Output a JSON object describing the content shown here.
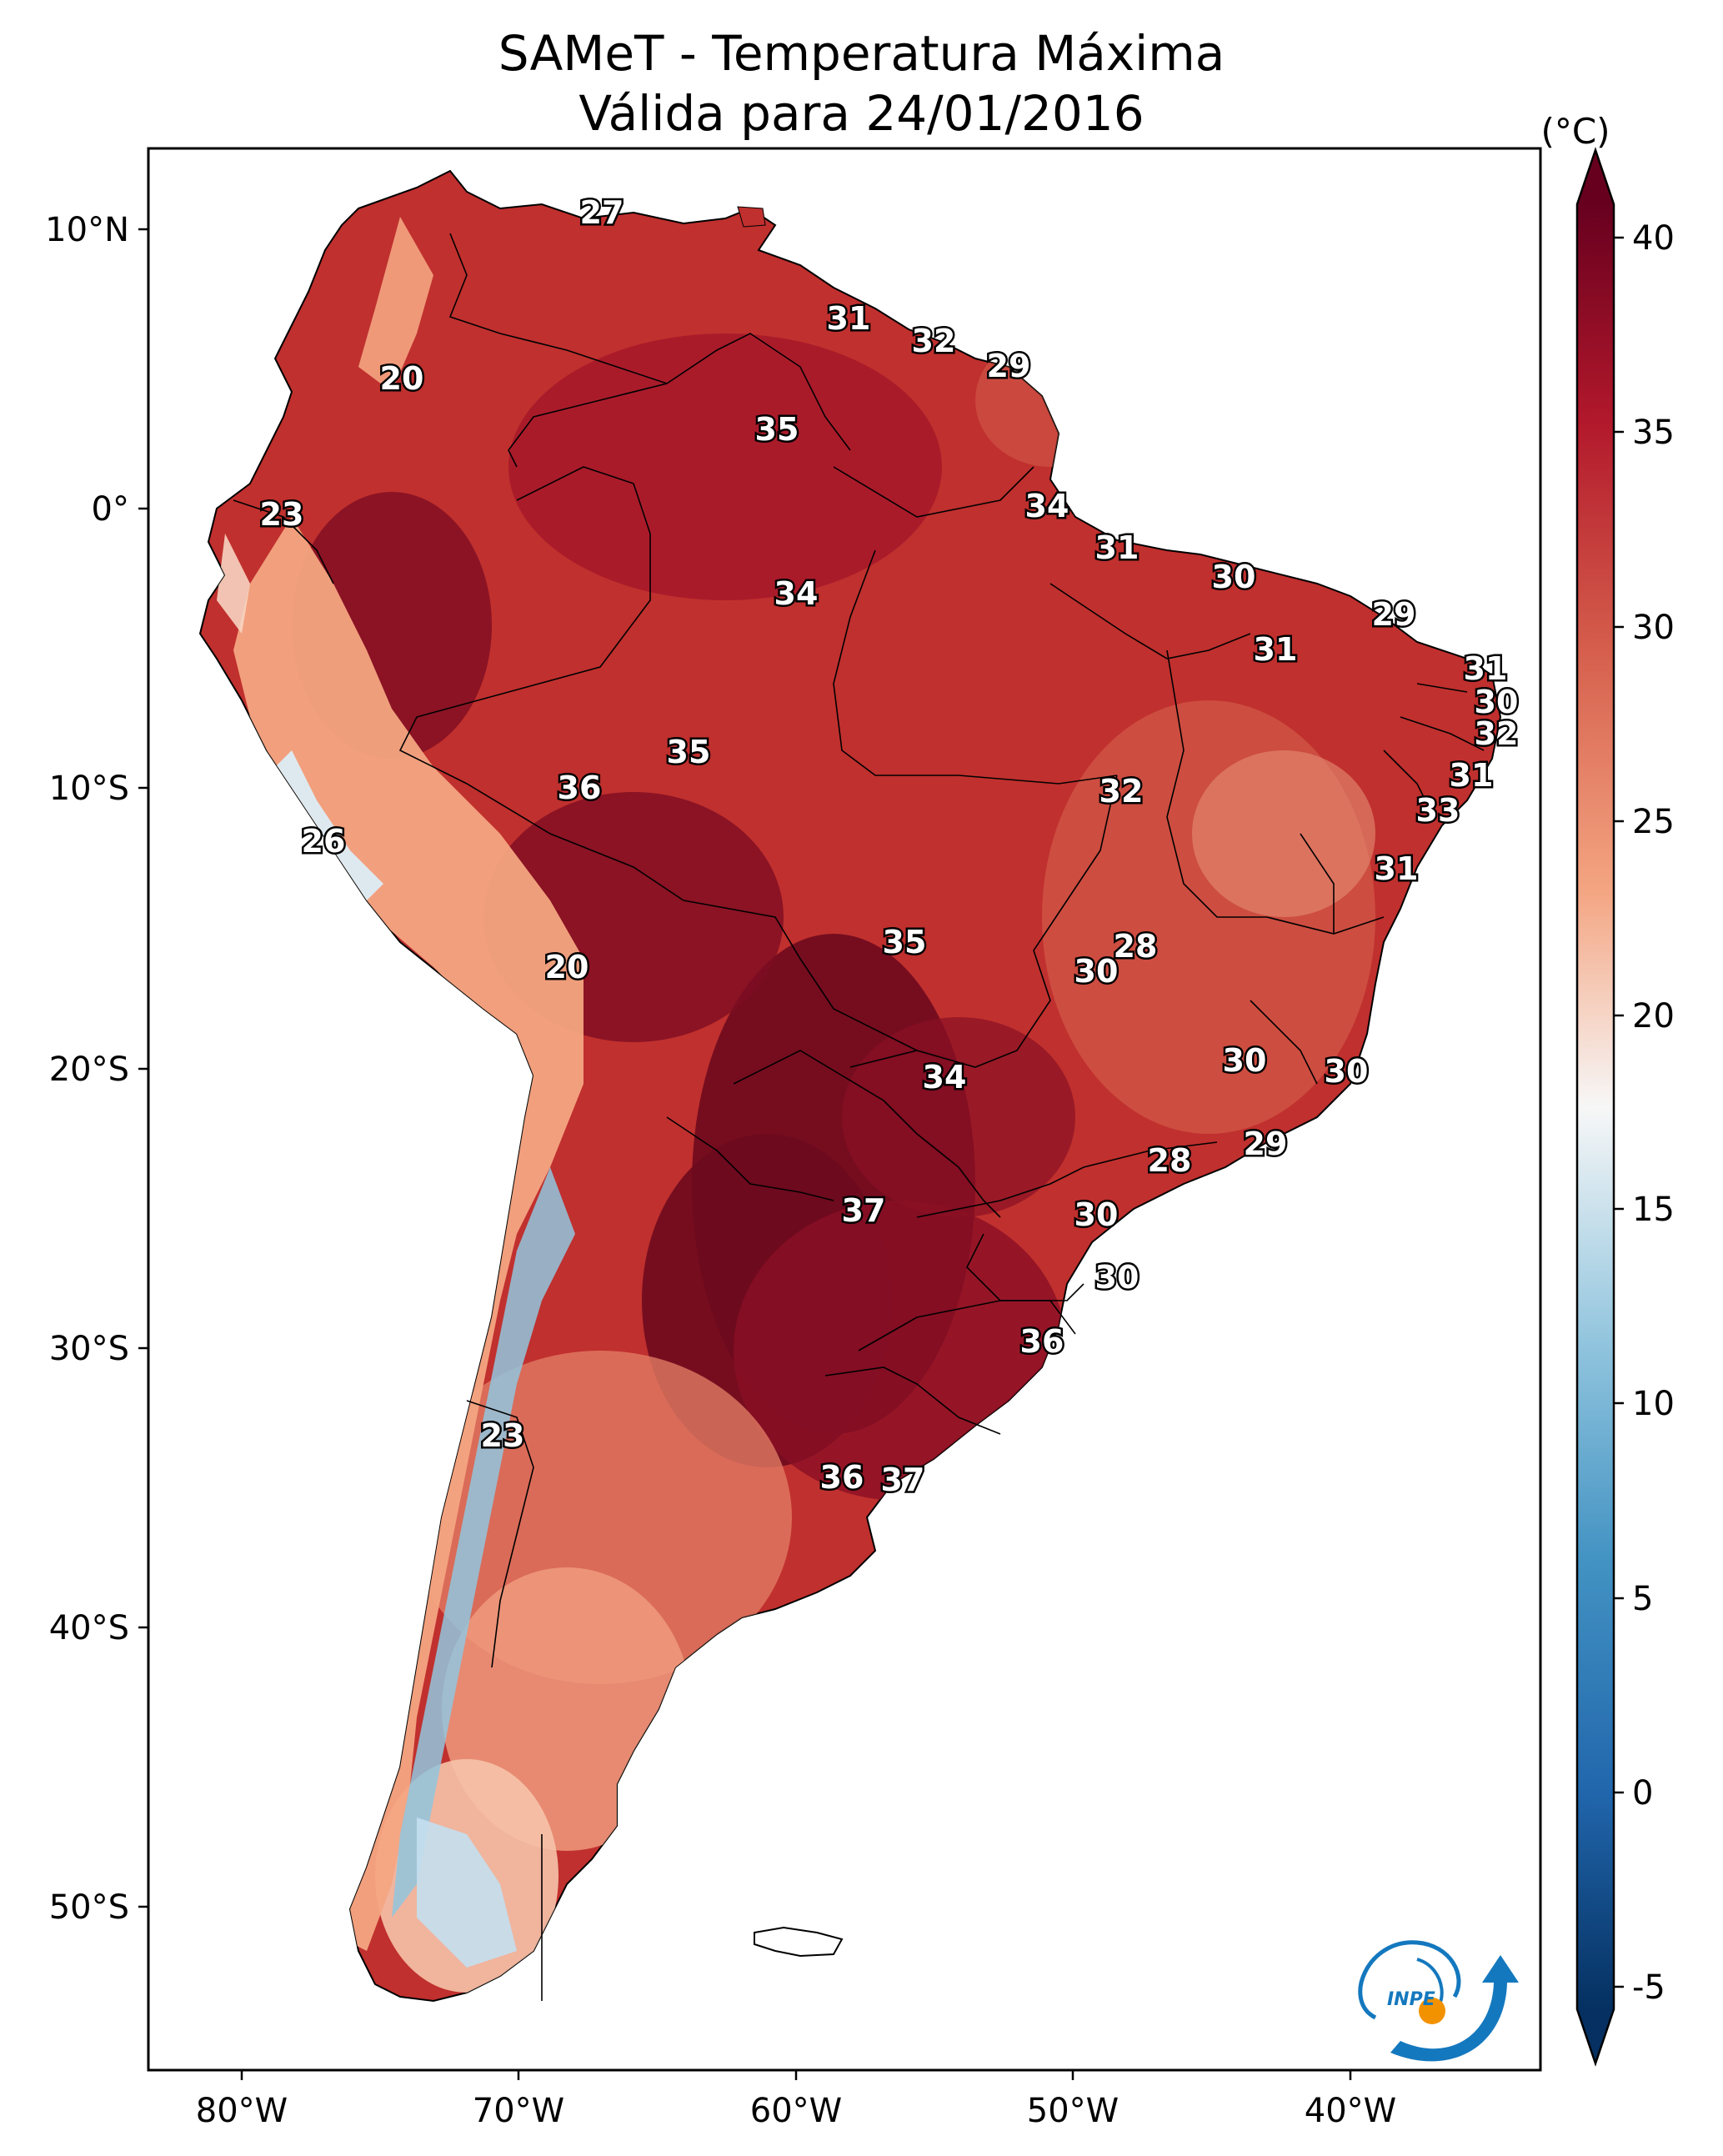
{
  "title": {
    "line1": "SAMeT - Temperatura Máxima",
    "line2": "Válida para 24/01/2016"
  },
  "colors": {
    "hot": "#6e0a1e",
    "warm": "#b2182b",
    "mid_warm": "#d6604d",
    "light_warm": "#f4a582",
    "neutral": "#f7f7f7",
    "light_cool": "#92c5de",
    "cool": "#4393c3",
    "cold": "#2166ac",
    "coldest": "#053061",
    "inpe_blue": "#1478be",
    "inpe_orange": "#f39200"
  },
  "axes": {
    "lat_labels": [
      "10°N",
      "0°",
      "10°S",
      "20°S",
      "30°S",
      "40°S",
      "50°S"
    ],
    "lon_labels": [
      "80°W",
      "70°W",
      "60°W",
      "50°W",
      "40°W"
    ]
  },
  "colorbar": {
    "unit": "(°C)",
    "ticks": [
      "40",
      "35",
      "30",
      "25",
      "20",
      "15",
      "10",
      "5",
      "0",
      "-5"
    ]
  },
  "logo": {
    "text": "INPE"
  },
  "city_values": [
    {
      "id": "c1",
      "value": "27"
    },
    {
      "id": "c2",
      "value": "31"
    },
    {
      "id": "c3",
      "value": "32"
    },
    {
      "id": "c4",
      "value": "29"
    },
    {
      "id": "c5",
      "value": "20"
    },
    {
      "id": "c6",
      "value": "35"
    },
    {
      "id": "c7",
      "value": "34"
    },
    {
      "id": "c8",
      "value": "23"
    },
    {
      "id": "c9",
      "value": "31"
    },
    {
      "id": "c10",
      "value": "30"
    },
    {
      "id": "c11",
      "value": "34"
    },
    {
      "id": "c12",
      "value": "29"
    },
    {
      "id": "c13",
      "value": "31"
    },
    {
      "id": "c14",
      "value": "31"
    },
    {
      "id": "c15",
      "value": "30"
    },
    {
      "id": "c16",
      "value": "32"
    },
    {
      "id": "c17",
      "value": "35"
    },
    {
      "id": "c18",
      "value": "36"
    },
    {
      "id": "c19",
      "value": "32"
    },
    {
      "id": "c20",
      "value": "31"
    },
    {
      "id": "c21",
      "value": "33"
    },
    {
      "id": "c22",
      "value": "26"
    },
    {
      "id": "c23",
      "value": "31"
    },
    {
      "id": "c24",
      "value": "35"
    },
    {
      "id": "c25",
      "value": "28"
    },
    {
      "id": "c26",
      "value": "30"
    },
    {
      "id": "c27",
      "value": "20"
    },
    {
      "id": "c28",
      "value": "30"
    },
    {
      "id": "c29",
      "value": "34"
    },
    {
      "id": "c30",
      "value": "30"
    },
    {
      "id": "c31",
      "value": "29"
    },
    {
      "id": "c32",
      "value": "28"
    },
    {
      "id": "c33",
      "value": "37"
    },
    {
      "id": "c34",
      "value": "30"
    },
    {
      "id": "c35",
      "value": "30"
    },
    {
      "id": "c36",
      "value": "36"
    },
    {
      "id": "c37",
      "value": "23"
    },
    {
      "id": "c38",
      "value": "36"
    },
    {
      "id": "c39",
      "value": "37"
    }
  ]
}
